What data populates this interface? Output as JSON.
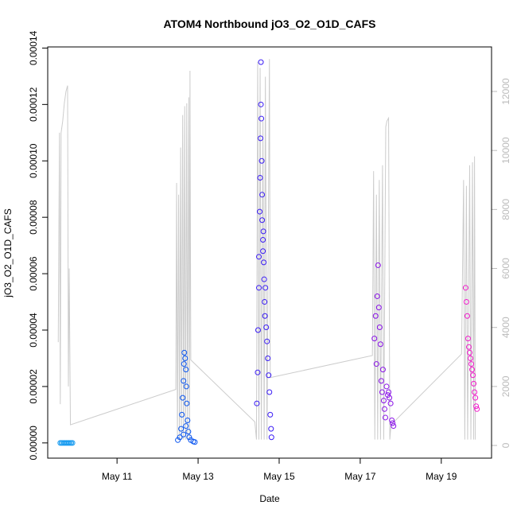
{
  "chart_data": {
    "type": "scatter",
    "title": "ATOM4 Northbound jO3_O2_O1D_CAFS",
    "xlabel": "Date",
    "ylabel": "jO3_O2_O1D_CAFS",
    "xlim": [
      9.29,
      20.24
    ],
    "xticks": [
      {
        "value": 11,
        "label": "May 11"
      },
      {
        "value": 13,
        "label": "May 13"
      },
      {
        "value": 15,
        "label": "May 15"
      },
      {
        "value": 17,
        "label": "May 17"
      },
      {
        "value": 19,
        "label": "May 19"
      }
    ],
    "ylim": [
      -5.4e-06,
      0.0001404
    ],
    "yticks": [
      {
        "value": 0,
        "label": "0.00000"
      },
      {
        "value": 2e-05,
        "label": "0.00002"
      },
      {
        "value": 4e-05,
        "label": "0.00004"
      },
      {
        "value": 6e-05,
        "label": "0.00006"
      },
      {
        "value": 8e-05,
        "label": "0.00008"
      },
      {
        "value": 0.0001,
        "label": "0.00010"
      },
      {
        "value": 0.00012,
        "label": "0.00012"
      },
      {
        "value": 0.00014,
        "label": "0.00014"
      }
    ],
    "y2lim": [
      -430,
      13510
    ],
    "y2ticks": [
      0,
      2000,
      4000,
      6000,
      8000,
      10000,
      12000
    ],
    "y2color": "#bbbbbb",
    "series": [
      {
        "type": "line",
        "axis": "y2",
        "color": "#cccccc",
        "x": [
          9.55,
          9.58,
          9.6,
          9.62,
          9.66,
          9.7,
          9.74,
          9.78,
          9.8,
          9.82,
          9.85,
          12.45,
          12.47,
          12.49,
          12.52,
          12.54,
          12.57,
          12.59,
          12.62,
          12.64,
          12.67,
          12.69,
          12.72,
          12.74,
          12.77,
          12.79,
          12.8,
          12.82,
          14.4,
          14.44,
          14.47,
          14.5,
          14.53,
          14.56,
          14.6,
          14.63,
          14.66,
          14.7,
          14.76,
          14.78,
          17.3,
          17.33,
          17.36,
          17.4,
          17.43,
          17.47,
          17.5,
          17.55,
          17.58,
          17.63,
          17.66,
          17.7,
          17.73,
          17.76,
          19.5,
          19.55,
          19.58,
          19.62,
          19.65,
          19.7,
          19.73,
          19.77,
          19.8,
          19.82,
          19.84
        ],
        "values": [
          3500,
          10600,
          1400,
          10600,
          11000,
          11600,
          12000,
          12200,
          2000,
          6000,
          700,
          1900,
          8900,
          200,
          8500,
          200,
          10100,
          200,
          11200,
          200,
          11500,
          200,
          11600,
          200,
          11800,
          200,
          12700,
          2900,
          800,
          200,
          13000,
          200,
          12800,
          200,
          11000,
          200,
          12500,
          200,
          13100,
          2300,
          3050,
          9300,
          200,
          8500,
          200,
          9000,
          200,
          9500,
          200,
          10800,
          11000,
          11100,
          200,
          700,
          3100,
          9000,
          200,
          8800,
          200,
          9500,
          200,
          9600,
          200,
          9800,
          200
        ]
      },
      {
        "type": "scatter",
        "color": "#1a9cf0",
        "x": [
          9.6,
          9.63,
          9.66,
          9.69,
          9.72,
          9.75,
          9.78,
          9.81,
          9.84,
          9.87,
          9.9
        ],
        "values": [
          0,
          0,
          0,
          0,
          0,
          0,
          0,
          0,
          0,
          0,
          0
        ]
      },
      {
        "type": "scatter",
        "color": "#0a55f0",
        "x": [
          12.5,
          12.55,
          12.58,
          12.6,
          12.62,
          12.64,
          12.65,
          12.66,
          12.68,
          12.7,
          12.71,
          12.72,
          12.74,
          12.76,
          12.78,
          12.82,
          12.88,
          12.92,
          12.64,
          12.7
        ],
        "values": [
          1e-06,
          2e-06,
          5e-06,
          1e-05,
          1.6e-05,
          2.2e-05,
          2.8e-05,
          3.2e-05,
          3e-05,
          2.6e-05,
          2e-05,
          1.4e-05,
          8e-06,
          4e-06,
          2e-06,
          1e-06,
          5e-07,
          3e-07,
          3e-06,
          6e-06
        ]
      },
      {
        "type": "scatter",
        "color": "#3a1cf5",
        "x": [
          14.45,
          14.47,
          14.48,
          14.5,
          14.5,
          14.52,
          14.53,
          14.54,
          14.55,
          14.55,
          14.56,
          14.57,
          14.58,
          14.58,
          14.6,
          14.6,
          14.61,
          14.62,
          14.63,
          14.64,
          14.65,
          14.66,
          14.68,
          14.7,
          14.72,
          14.74,
          14.76,
          14.78,
          14.8,
          14.81
        ],
        "values": [
          1.4e-05,
          2.5e-05,
          4e-05,
          5.5e-05,
          6.6e-05,
          8.2e-05,
          9.4e-05,
          0.000108,
          0.000135,
          0.00012,
          0.000115,
          0.0001,
          8.8e-05,
          7.9e-05,
          7.2e-05,
          6.8e-05,
          7.5e-05,
          6.4e-05,
          5.8e-05,
          5e-05,
          4.5e-05,
          5.5e-05,
          4.1e-05,
          3.6e-05,
          3e-05,
          2.4e-05,
          1.8e-05,
          1e-05,
          5e-06,
          2e-06
        ]
      },
      {
        "type": "scatter",
        "color": "#8a12e8",
        "x": [
          17.35,
          17.38,
          17.4,
          17.42,
          17.44,
          17.46,
          17.48,
          17.5,
          17.52,
          17.54,
          17.56,
          17.58,
          17.6,
          17.62,
          17.65,
          17.68,
          17.7,
          17.72,
          17.75,
          17.78,
          17.8,
          17.82
        ],
        "values": [
          3.7e-05,
          4.5e-05,
          2.8e-05,
          5.2e-05,
          6.3e-05,
          4.8e-05,
          4.1e-05,
          3.5e-05,
          2.2e-05,
          1.8e-05,
          2.6e-05,
          1.5e-05,
          1.2e-05,
          9e-06,
          2e-05,
          1.7e-05,
          1.8e-05,
          1.6e-05,
          1.4e-05,
          8e-06,
          7e-06,
          6e-06
        ]
      },
      {
        "type": "scatter",
        "color": "#f21ccc",
        "x": [
          19.6,
          19.62,
          19.64,
          19.66,
          19.68,
          19.7,
          19.72,
          19.74,
          19.76,
          19.78,
          19.8,
          19.82,
          19.84,
          19.86,
          19.88
        ],
        "values": [
          5.5e-05,
          5e-05,
          4.5e-05,
          3.7e-05,
          3.4e-05,
          3.2e-05,
          3e-05,
          2.8e-05,
          2.6e-05,
          2.4e-05,
          2.1e-05,
          1.8e-05,
          1.6e-05,
          1.3e-05,
          1.2e-05
        ]
      }
    ]
  }
}
